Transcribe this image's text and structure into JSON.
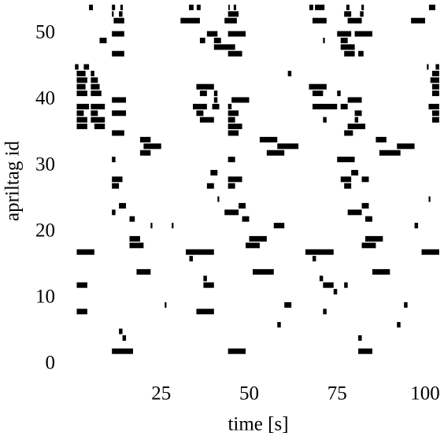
{
  "chart_data": {
    "type": "raster",
    "x_label": "time [s]",
    "y_label": "apriltag id",
    "xlim": [
      0,
      105
    ],
    "ylim": [
      -1,
      55
    ],
    "xticks": [
      25,
      50,
      75,
      100
    ],
    "yticks": [
      0,
      10,
      20,
      30,
      40,
      50
    ],
    "color": "#000000",
    "events": [
      {
        "id": 54,
        "intervals": [
          [
            4.5,
            5.6
          ],
          [
            11,
            11.9
          ],
          [
            13.4,
            14.1
          ],
          [
            32.9,
            34.2
          ],
          [
            35.1,
            36.2
          ],
          [
            44.1,
            44.5
          ],
          [
            45.6,
            46.3
          ],
          [
            67.1,
            68.2
          ],
          [
            68.7,
            71.4
          ],
          [
            77.6,
            78.5
          ],
          [
            81.9,
            82.6
          ],
          [
            101.1,
            102.9
          ]
        ]
      },
      {
        "id": 53,
        "intervals": [
          [
            11,
            11.5
          ],
          [
            13,
            14
          ],
          [
            44,
            47
          ],
          [
            77,
            79
          ],
          [
            81.5,
            82.5
          ]
        ]
      },
      {
        "id": 52,
        "intervals": [
          [
            11.5,
            14.5
          ],
          [
            30.5,
            36
          ],
          [
            43,
            46.5
          ],
          [
            68,
            72
          ],
          [
            78,
            82
          ],
          [
            96,
            100
          ]
        ]
      },
      {
        "id": 50,
        "intervals": [
          [
            11,
            14.5
          ],
          [
            38,
            41
          ],
          [
            44,
            49
          ],
          [
            75,
            79
          ],
          [
            80,
            85
          ]
        ]
      },
      {
        "id": 49,
        "intervals": [
          [
            7.5,
            9.5
          ],
          [
            36,
            37.5
          ],
          [
            40,
            42
          ],
          [
            71,
            71.5
          ],
          [
            76,
            78
          ]
        ]
      },
      {
        "id": 48,
        "intervals": [
          [
            40,
            46
          ],
          [
            76,
            80
          ]
        ]
      },
      {
        "id": 47,
        "intervals": [
          [
            11,
            14.5
          ],
          [
            44,
            48
          ],
          [
            77,
            80
          ],
          [
            81,
            82.5
          ]
        ]
      },
      {
        "id": 45,
        "intervals": [
          [
            0.5,
            1.5
          ],
          [
            3,
            4.5
          ],
          [
            100.5,
            101
          ],
          [
            103,
            104
          ]
        ]
      },
      {
        "id": 44,
        "intervals": [
          [
            1,
            3.5
          ],
          [
            5,
            6
          ],
          [
            61,
            62
          ],
          [
            102,
            104
          ]
        ]
      },
      {
        "id": 43,
        "intervals": [
          [
            1,
            4
          ],
          [
            5,
            7
          ],
          [
            101.5,
            104
          ]
        ]
      },
      {
        "id": 42,
        "intervals": [
          [
            1,
            3.5
          ],
          [
            5,
            7.5
          ],
          [
            35,
            40
          ],
          [
            67,
            72
          ],
          [
            102,
            104
          ]
        ]
      },
      {
        "id": 41,
        "intervals": [
          [
            1,
            4
          ],
          [
            5,
            8
          ],
          [
            36,
            38
          ],
          [
            40,
            41
          ],
          [
            68,
            71
          ],
          [
            75,
            76
          ],
          [
            102,
            104
          ]
        ]
      },
      {
        "id": 40,
        "intervals": [
          [
            11,
            15
          ],
          [
            40,
            41
          ],
          [
            45,
            50
          ],
          [
            78,
            82
          ]
        ]
      },
      {
        "id": 39,
        "intervals": [
          [
            1,
            4.5
          ],
          [
            5,
            9
          ],
          [
            34,
            38
          ],
          [
            39.5,
            41.5
          ],
          [
            44,
            45
          ],
          [
            68,
            75
          ],
          [
            76,
            78
          ],
          [
            101,
            104
          ]
        ]
      },
      {
        "id": 38,
        "intervals": [
          [
            1,
            3
          ],
          [
            5,
            7
          ],
          [
            11,
            15
          ],
          [
            35,
            37
          ],
          [
            44,
            47
          ],
          [
            80,
            82
          ],
          [
            102,
            104
          ]
        ]
      },
      {
        "id": 37,
        "intervals": [
          [
            1,
            4
          ],
          [
            5,
            9
          ],
          [
            36,
            40
          ],
          [
            44,
            46
          ],
          [
            71,
            72
          ],
          [
            80,
            81
          ],
          [
            102,
            104
          ]
        ]
      },
      {
        "id": 36,
        "intervals": [
          [
            1,
            4
          ],
          [
            6,
            9
          ],
          [
            44,
            48
          ],
          [
            78,
            83
          ]
        ]
      },
      {
        "id": 35,
        "intervals": [
          [
            11,
            14.5
          ],
          [
            44,
            47
          ],
          [
            77,
            79.5
          ]
        ]
      },
      {
        "id": 34,
        "intervals": [
          [
            19,
            22
          ],
          [
            53,
            58
          ],
          [
            86,
            89
          ]
        ]
      },
      {
        "id": 33,
        "intervals": [
          [
            20,
            25
          ],
          [
            58,
            64
          ],
          [
            92,
            97
          ]
        ]
      },
      {
        "id": 32,
        "intervals": [
          [
            19,
            22
          ],
          [
            55,
            60
          ],
          [
            87,
            93
          ]
        ]
      },
      {
        "id": 31,
        "intervals": [
          [
            11,
            12
          ],
          [
            44,
            46
          ],
          [
            75,
            80
          ]
        ]
      },
      {
        "id": 29,
        "intervals": [
          [
            39,
            41
          ],
          [
            79,
            81
          ]
        ]
      },
      {
        "id": 28,
        "intervals": [
          [
            11,
            14
          ],
          [
            44,
            48
          ],
          [
            76,
            79
          ],
          [
            82,
            84
          ]
        ]
      },
      {
        "id": 27,
        "intervals": [
          [
            11,
            13
          ],
          [
            38,
            40
          ],
          [
            44,
            46
          ],
          [
            77,
            79
          ]
        ]
      },
      {
        "id": 25,
        "intervals": [
          [
            41,
            41.5
          ],
          [
            101,
            101.5
          ]
        ]
      },
      {
        "id": 24,
        "intervals": [
          [
            13,
            15
          ],
          [
            47,
            49
          ],
          [
            82,
            84
          ]
        ]
      },
      {
        "id": 23,
        "intervals": [
          [
            11,
            12
          ],
          [
            43,
            47
          ],
          [
            78,
            82
          ]
        ]
      },
      {
        "id": 22,
        "intervals": [
          [
            16,
            17.5
          ],
          [
            48,
            50
          ],
          [
            83,
            85
          ]
        ]
      },
      {
        "id": 21,
        "intervals": [
          [
            22,
            22.5
          ],
          [
            28,
            28.5
          ],
          [
            57,
            60
          ],
          [
            97,
            98
          ]
        ]
      },
      {
        "id": 19,
        "intervals": [
          [
            16,
            19
          ],
          [
            50,
            55
          ],
          [
            83,
            88
          ]
        ]
      },
      {
        "id": 18,
        "intervals": [
          [
            16,
            20
          ],
          [
            49,
            53
          ],
          [
            82,
            86
          ]
        ]
      },
      {
        "id": 17,
        "intervals": [
          [
            1,
            6
          ],
          [
            32,
            40
          ],
          [
            66,
            74
          ],
          [
            99,
            104
          ]
        ]
      },
      {
        "id": 16,
        "intervals": [
          [
            33,
            34
          ],
          [
            68,
            69
          ]
        ]
      },
      {
        "id": 14,
        "intervals": [
          [
            18,
            22
          ],
          [
            51,
            57
          ],
          [
            85,
            90
          ]
        ]
      },
      {
        "id": 13,
        "intervals": [
          [
            37,
            38
          ],
          [
            70,
            71
          ]
        ]
      },
      {
        "id": 12,
        "intervals": [
          [
            1,
            4
          ],
          [
            37,
            40
          ],
          [
            71,
            74
          ],
          [
            77,
            78
          ]
        ]
      },
      {
        "id": 11,
        "intervals": [
          [
            74,
            75
          ]
        ]
      },
      {
        "id": 9,
        "intervals": [
          [
            26,
            26.5
          ],
          [
            60,
            62
          ],
          [
            94,
            95
          ]
        ]
      },
      {
        "id": 8,
        "intervals": [
          [
            1,
            4
          ],
          [
            35,
            40
          ],
          [
            71,
            72
          ]
        ]
      },
      {
        "id": 6,
        "intervals": [
          [
            58,
            59
          ],
          [
            92,
            93
          ]
        ]
      },
      {
        "id": 5,
        "intervals": [
          [
            13,
            14
          ]
        ]
      },
      {
        "id": 4,
        "intervals": [
          [
            14,
            15
          ],
          [
            81,
            82
          ]
        ]
      },
      {
        "id": 2,
        "intervals": [
          [
            11,
            17
          ],
          [
            44,
            49
          ],
          [
            81,
            85
          ]
        ]
      }
    ]
  }
}
